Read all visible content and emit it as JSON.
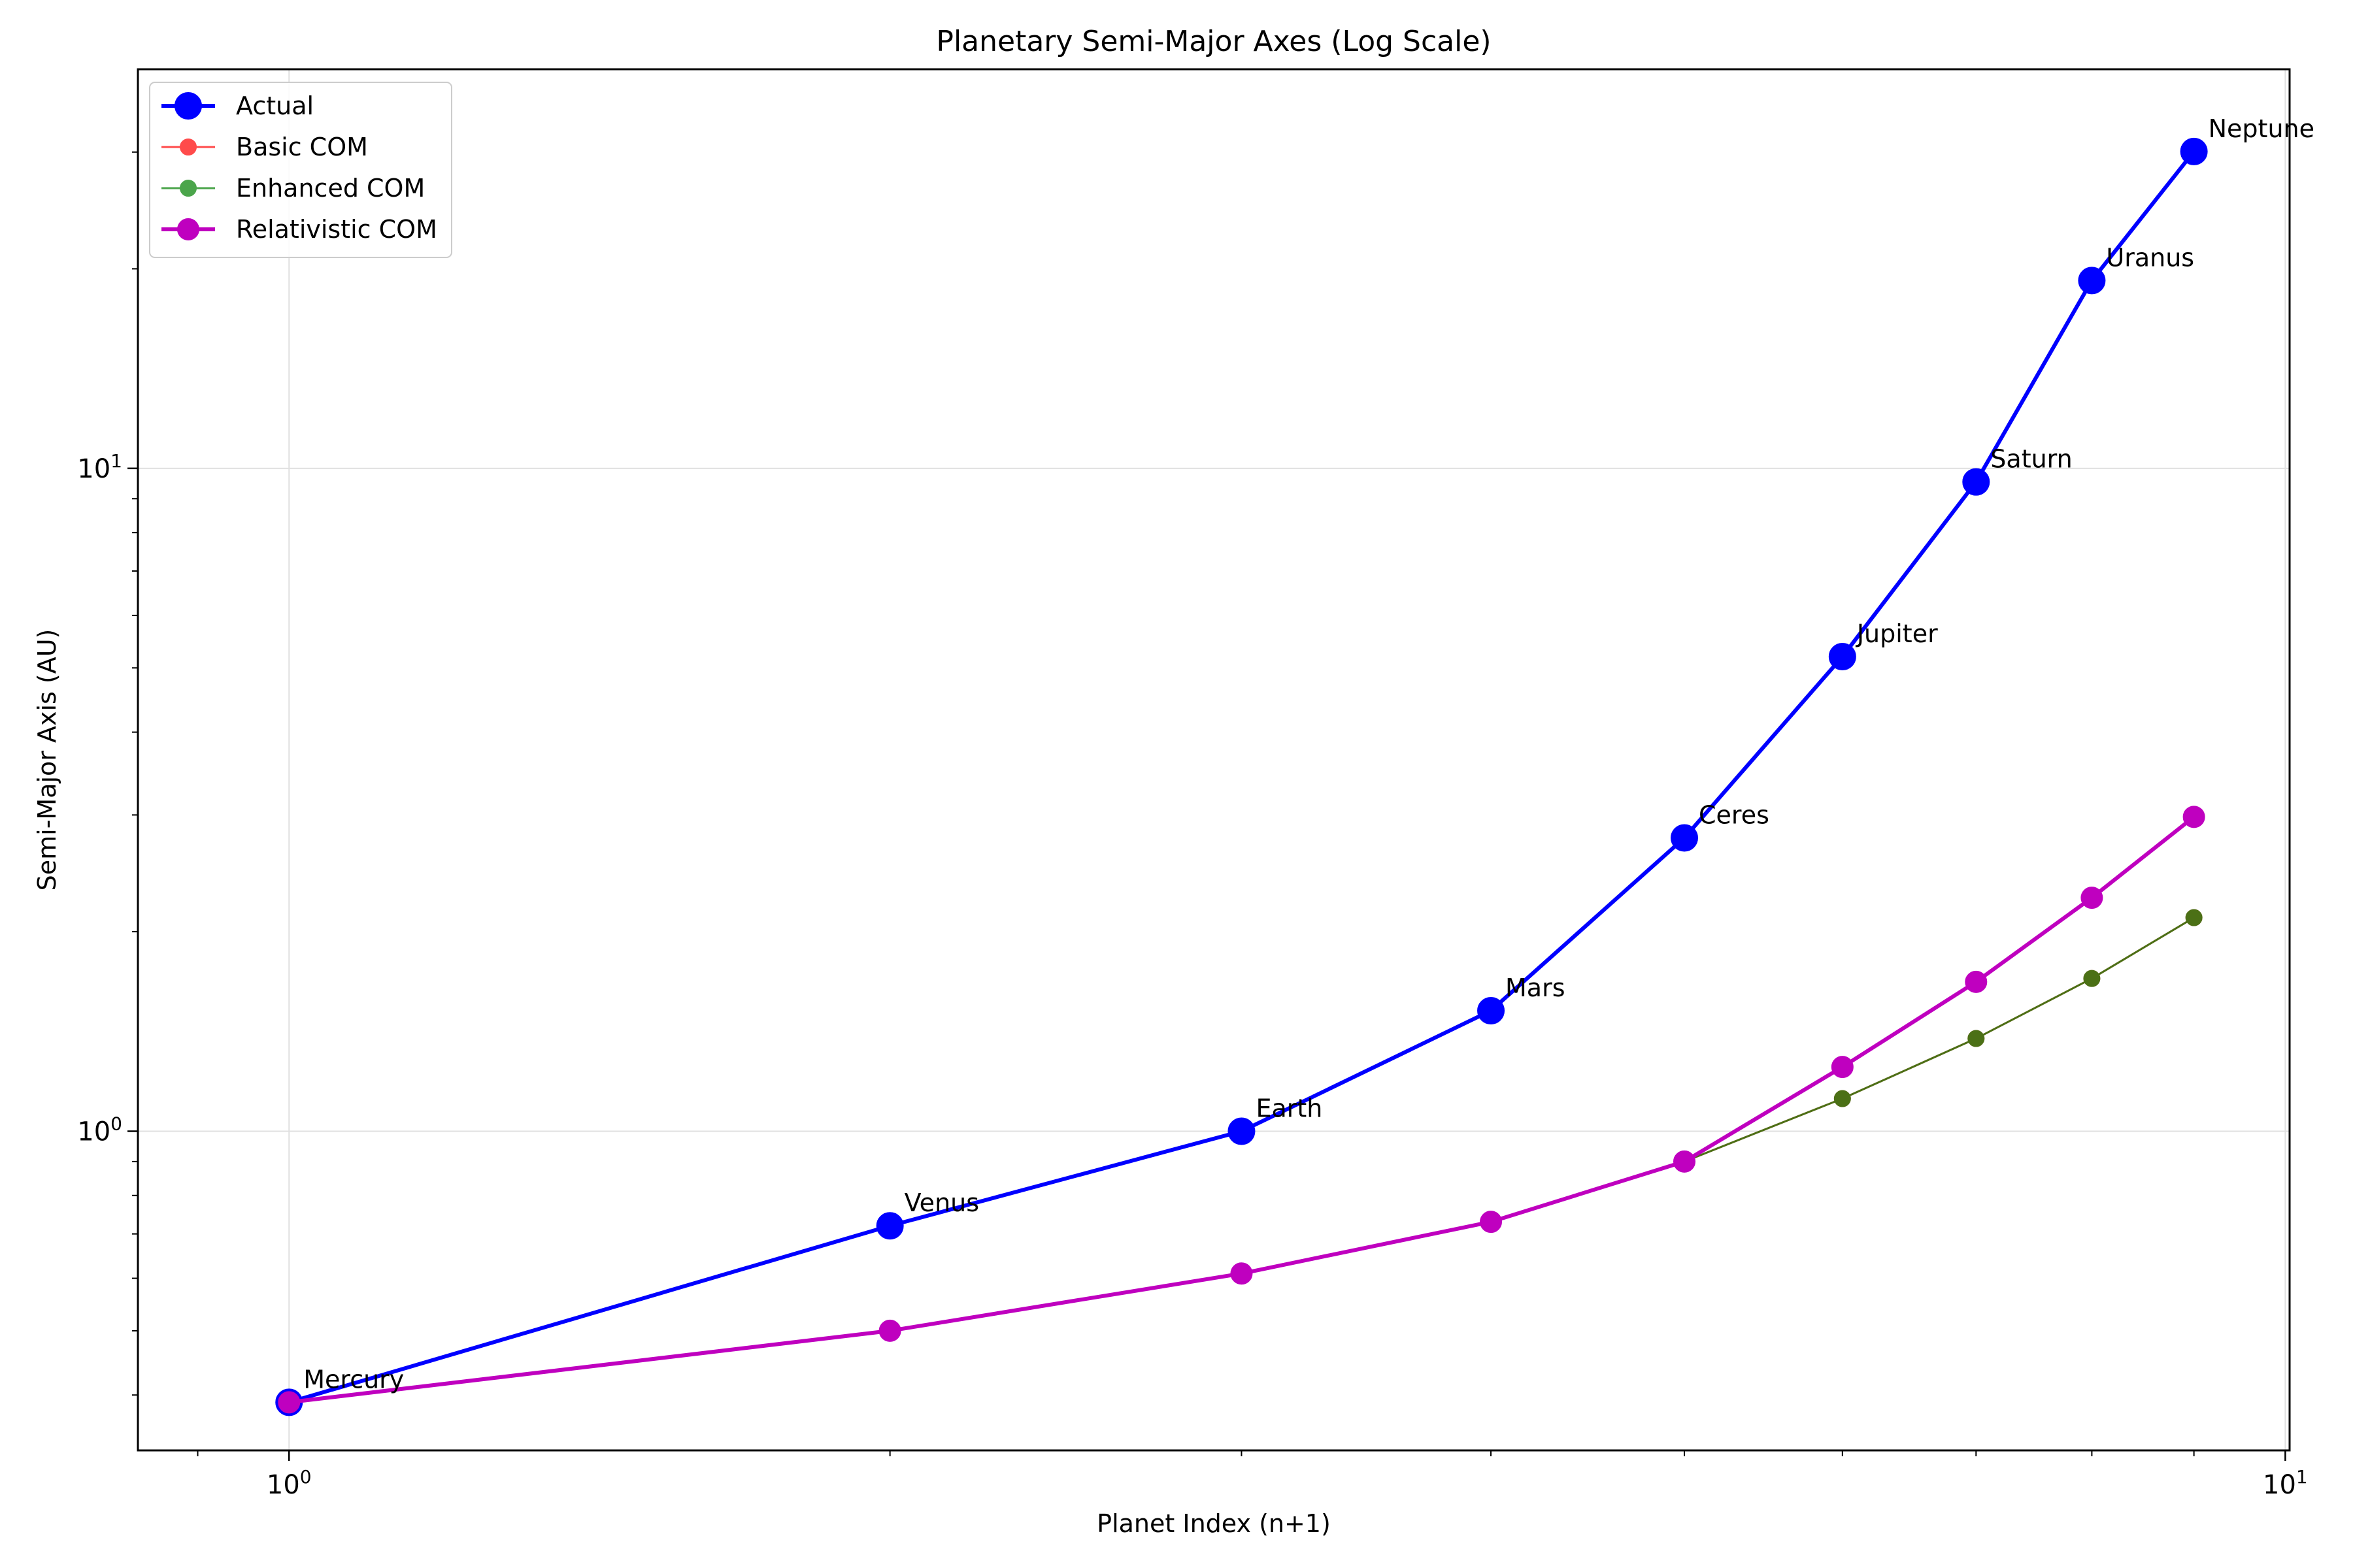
{
  "chart_data": {
    "type": "line",
    "title": "Planetary Semi-Major Axes (Log Scale)",
    "xlabel": "Planet Index (n+1)",
    "ylabel": "Semi-Major Axis (AU)",
    "xscale": "log",
    "yscale": "log",
    "xlim": [
      0.84,
      10.05
    ],
    "ylim": [
      0.33,
      40
    ],
    "x_ticks": [
      {
        "base": "10",
        "exp": "0",
        "value": 1
      },
      {
        "base": "10",
        "exp": "1",
        "value": 10
      }
    ],
    "y_ticks": [
      {
        "base": "10",
        "exp": "0",
        "value": 1
      },
      {
        "base": "10",
        "exp": "1",
        "value": 10
      }
    ],
    "grid": true,
    "legend_position": "top-left",
    "x": [
      1,
      2,
      3,
      4,
      5,
      6,
      7,
      8,
      9
    ],
    "point_labels": [
      "Mercury",
      "Venus",
      "Earth",
      "Mars",
      "Ceres",
      "Jupiter",
      "Saturn",
      "Uranus",
      "Neptune"
    ],
    "series": [
      {
        "name": "Actual",
        "color": "#0000ff",
        "values": [
          0.39,
          0.72,
          1.0,
          1.52,
          2.77,
          5.2,
          9.54,
          19.2,
          30.06
        ],
        "marker": "large",
        "line": "thick"
      },
      {
        "name": "Basic COM",
        "color": "#ff0000",
        "values": [
          0.39,
          0.5,
          0.61,
          0.73,
          0.9,
          1.12,
          1.38,
          1.7,
          2.1
        ],
        "marker": "small",
        "line": "thin",
        "opacity": 0.7
      },
      {
        "name": "Enhanced COM",
        "color": "#008000",
        "values": [
          0.39,
          0.5,
          0.61,
          0.73,
          0.9,
          1.12,
          1.38,
          1.7,
          2.1
        ],
        "marker": "small",
        "line": "thin",
        "opacity": 0.7
      },
      {
        "name": "Relativistic COM",
        "color": "#bf00bf",
        "values": [
          0.39,
          0.5,
          0.61,
          0.73,
          0.9,
          1.25,
          1.68,
          2.25,
          2.98
        ],
        "marker": "medium",
        "line": "thick"
      }
    ]
  }
}
